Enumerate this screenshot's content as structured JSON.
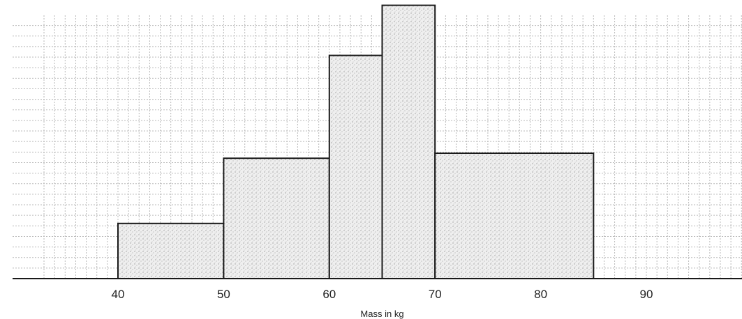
{
  "chart_data": {
    "type": "bar",
    "subtype": "histogram",
    "title": "",
    "xlabel": "Mass in kg",
    "ylabel": "",
    "x_ticks": [
      40,
      50,
      60,
      70,
      80,
      90
    ],
    "xlim": [
      33,
      96
    ],
    "ylim": [
      0,
      10.5
    ],
    "grid": true,
    "bins": [
      {
        "from": 40,
        "to": 50,
        "height": 2.2
      },
      {
        "from": 50,
        "to": 60,
        "height": 4.8
      },
      {
        "from": 60,
        "to": 65,
        "height": 8.9
      },
      {
        "from": 65,
        "to": 70,
        "height": 10.9
      },
      {
        "from": 70,
        "to": 85,
        "height": 5.0
      }
    ]
  },
  "colors": {
    "bar_fill": "#e6e6e6",
    "bar_stroke": "#1a1a1a",
    "grid": "#b9b9b9"
  }
}
